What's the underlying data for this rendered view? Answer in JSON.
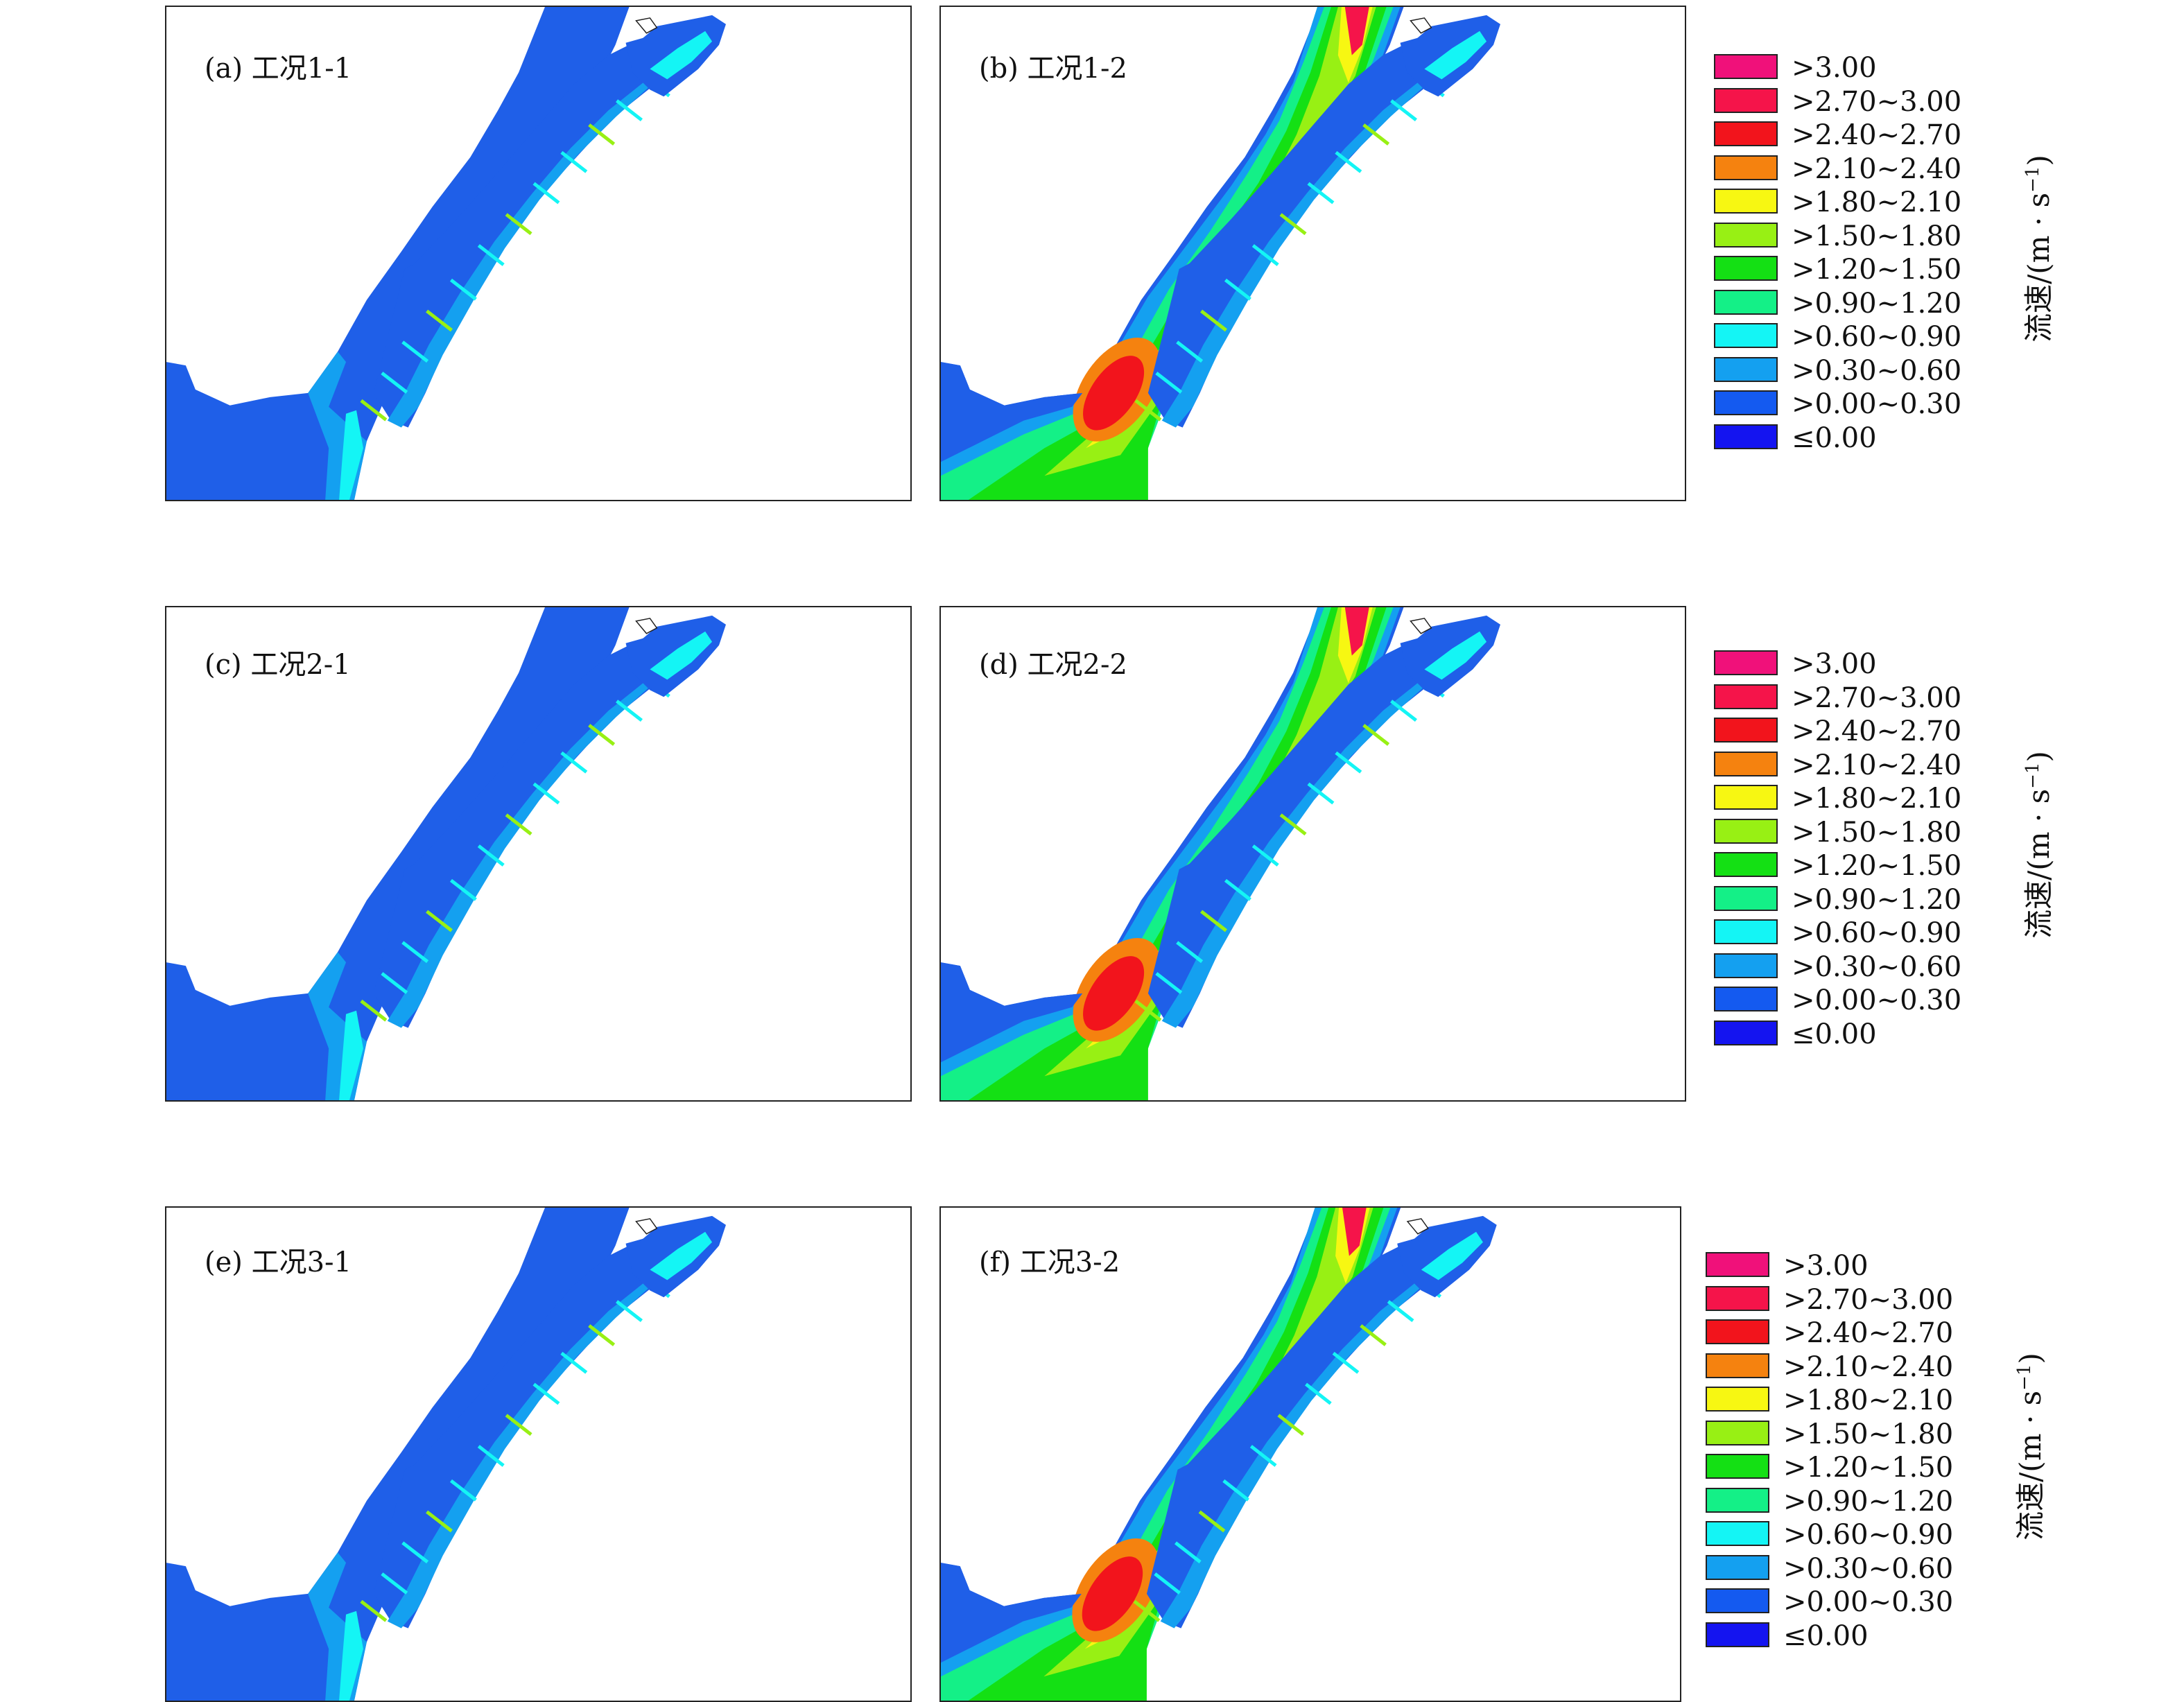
{
  "panels": [
    {
      "label": "(a) 工况1-1",
      "case": "low"
    },
    {
      "label": "(b) 工况1-2",
      "case": "high"
    },
    {
      "label": "(c) 工况2-1",
      "case": "low"
    },
    {
      "label": "(d) 工况2-2",
      "case": "high"
    },
    {
      "label": "(e) 工况3-1",
      "case": "low"
    },
    {
      "label": "(f) 工况3-2",
      "case": "high"
    }
  ],
  "legend": {
    "unit_prefix": "流速/(m · s",
    "unit_sup": "−1",
    "unit_suffix": ")",
    "entries": [
      {
        "label": ">3.00",
        "color": "#f0117a"
      },
      {
        "label": ">2.70~3.00",
        "color": "#f5144a"
      },
      {
        "label": ">2.40~2.70",
        "color": "#f2141c"
      },
      {
        "label": ">2.10~2.40",
        "color": "#f5820f"
      },
      {
        "label": ">1.80~2.10",
        "color": "#f7f712"
      },
      {
        "label": ">1.50~1.80",
        "color": "#98f014"
      },
      {
        "label": ">1.20~1.50",
        "color": "#14e014"
      },
      {
        "label": ">0.90~1.20",
        "color": "#14f087"
      },
      {
        "label": ">0.60~0.90",
        "color": "#14f5f5"
      },
      {
        "label": ">0.30~0.60",
        "color": "#14a0f0"
      },
      {
        "label": ">0.00~0.30",
        "color": "#145af0"
      },
      {
        "label": "≤0.00",
        "color": "#1414f0"
      }
    ]
  }
}
